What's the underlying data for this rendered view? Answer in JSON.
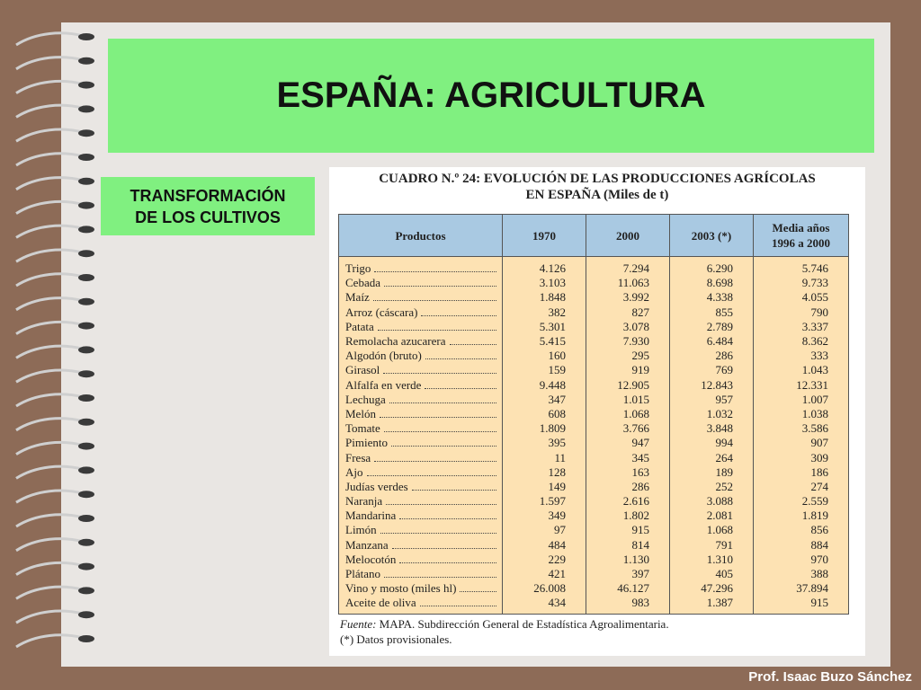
{
  "header": {
    "title": "ESPAÑA: AGRICULTURA"
  },
  "sidebar": {
    "lines": [
      "TRANSFORMACIÓN",
      "DE LOS CULTIVOS"
    ]
  },
  "table": {
    "title_lines": [
      "CUADRO N.º 24: EVOLUCIÓN DE LAS PRODUCCIONES AGRÍCOLAS",
      "EN ESPAÑA (Miles de t)"
    ],
    "columns": [
      "Productos",
      "1970",
      "2000",
      "2003 (*)",
      [
        "Media años",
        "1996 a 2000"
      ]
    ],
    "rows": [
      [
        "Trigo",
        "4.126",
        "7.294",
        "6.290",
        "5.746"
      ],
      [
        "Cebada",
        "3.103",
        "11.063",
        "8.698",
        "9.733"
      ],
      [
        "Maíz",
        "1.848",
        "3.992",
        "4.338",
        "4.055"
      ],
      [
        "Arroz (cáscara)",
        "382",
        "827",
        "855",
        "790"
      ],
      [
        "Patata",
        "5.301",
        "3.078",
        "2.789",
        "3.337"
      ],
      [
        "Remolacha azucarera",
        "5.415",
        "7.930",
        "6.484",
        "8.362"
      ],
      [
        "Algodón (bruto)",
        "160",
        "295",
        "286",
        "333"
      ],
      [
        "Girasol",
        "159",
        "919",
        "769",
        "1.043"
      ],
      [
        "Alfalfa en verde",
        "9.448",
        "12.905",
        "12.843",
        "12.331"
      ],
      [
        "Lechuga",
        "347",
        "1.015",
        "957",
        "1.007"
      ],
      [
        "Melón",
        "608",
        "1.068",
        "1.032",
        "1.038"
      ],
      [
        "Tomate",
        "1.809",
        "3.766",
        "3.848",
        "3.586"
      ],
      [
        "Pimiento",
        "395",
        "947",
        "994",
        "907"
      ],
      [
        "Fresa",
        "11",
        "345",
        "264",
        "309"
      ],
      [
        "Ajo",
        "128",
        "163",
        "189",
        "186"
      ],
      [
        "Judías verdes",
        "149",
        "286",
        "252",
        "274"
      ],
      [
        "Naranja",
        "1.597",
        "2.616",
        "3.088",
        "2.559"
      ],
      [
        "Mandarina",
        "349",
        "1.802",
        "2.081",
        "1.819"
      ],
      [
        "Limón",
        "97",
        "915",
        "1.068",
        "856"
      ],
      [
        "Manzana",
        "484",
        "814",
        "791",
        "884"
      ],
      [
        "Melocotón",
        "229",
        "1.130",
        "1.310",
        "970"
      ],
      [
        "Plátano",
        "421",
        "397",
        "405",
        "388"
      ],
      [
        "Vino y mosto (miles hl)",
        "26.008",
        "46.127",
        "47.296",
        "37.894"
      ],
      [
        "Aceite de oliva",
        "434",
        "983",
        "1.387",
        "915"
      ]
    ],
    "source_label": "Fuente:",
    "source": "MAPA. Subdirección General de Estadística Agroalimentaria.",
    "note": "(*) Datos provisionales."
  },
  "footer": {
    "author": "Prof. Isaac Buzo Sánchez"
  }
}
